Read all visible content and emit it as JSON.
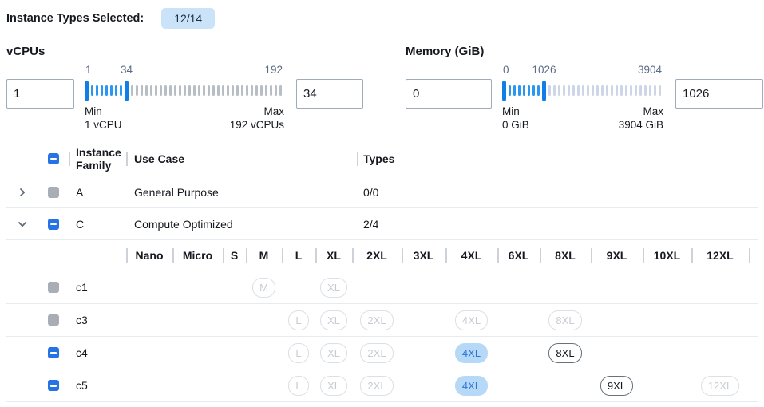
{
  "header": {
    "label": "Instance Types Selected:",
    "badge": "12/14"
  },
  "filters": [
    {
      "title": "vCPUs",
      "min_value": "1",
      "max_value": "34",
      "scale_min": "1",
      "scale_mid": "34",
      "scale_max": "192",
      "min_caption_title": "Min",
      "min_caption_value": "1 vCPU",
      "max_caption_title": "Max",
      "max_caption_value": "192 vCPUs",
      "slider": {
        "active_ticks": 7,
        "inactive_ticks": 32
      }
    },
    {
      "title": "Memory (GiB)",
      "min_value": "0",
      "max_value": "1026",
      "scale_min": "0",
      "scale_mid": "1026",
      "scale_max": "3904",
      "min_caption_title": "Min",
      "min_caption_value": "0 GiB",
      "max_caption_title": "Max",
      "max_caption_value": "3904 GiB",
      "slider": {
        "active_ticks": 7,
        "inactive_ticks": 24
      }
    }
  ],
  "table": {
    "select_all_state": "indeterminate",
    "columns": {
      "family": "Instance Family",
      "use_case": "Use Case",
      "types": "Types"
    },
    "size_columns": [
      "Nano",
      "Micro",
      "S",
      "M",
      "L",
      "XL",
      "2XL",
      "3XL",
      "4XL",
      "6XL",
      "8XL",
      "9XL",
      "10XL",
      "12XL"
    ],
    "family_rows": [
      {
        "family": "A",
        "use_case": "General Purpose",
        "types": "0/0",
        "checkbox": "disabled",
        "expanded": false
      },
      {
        "family": "C",
        "use_case": "Compute Optimized",
        "types": "2/4",
        "checkbox": "indeterminate",
        "expanded": true
      }
    ],
    "instance_rows": [
      {
        "name": "c1",
        "checkbox": "disabled",
        "pills": [
          {
            "size": "M",
            "state": "disabled"
          },
          {
            "size": "XL",
            "state": "disabled"
          }
        ]
      },
      {
        "name": "c3",
        "checkbox": "disabled",
        "pills": [
          {
            "size": "L",
            "state": "disabled"
          },
          {
            "size": "XL",
            "state": "disabled"
          },
          {
            "size": "2XL",
            "state": "disabled"
          },
          {
            "size": "4XL",
            "state": "disabled"
          },
          {
            "size": "8XL",
            "state": "disabled"
          }
        ]
      },
      {
        "name": "c4",
        "checkbox": "indeterminate",
        "pills": [
          {
            "size": "L",
            "state": "disabled"
          },
          {
            "size": "XL",
            "state": "disabled"
          },
          {
            "size": "2XL",
            "state": "disabled"
          },
          {
            "size": "4XL",
            "state": "selected"
          },
          {
            "size": "8XL",
            "state": "enabled"
          }
        ]
      },
      {
        "name": "c5",
        "checkbox": "indeterminate",
        "pills": [
          {
            "size": "L",
            "state": "disabled"
          },
          {
            "size": "XL",
            "state": "disabled"
          },
          {
            "size": "2XL",
            "state": "disabled"
          },
          {
            "size": "4XL",
            "state": "selected"
          },
          {
            "size": "9XL",
            "state": "enabled"
          },
          {
            "size": "12XL",
            "state": "disabled"
          }
        ]
      }
    ]
  },
  "colors": {
    "accent_blue": "#2673e6",
    "slider_active": "#2b96f2",
    "selected_pill_bg": "#b7d9f8",
    "selected_pill_text": "#2d74d4",
    "badge_bg": "#cbe3f9",
    "disabled_gray": "#a9aeb6"
  }
}
